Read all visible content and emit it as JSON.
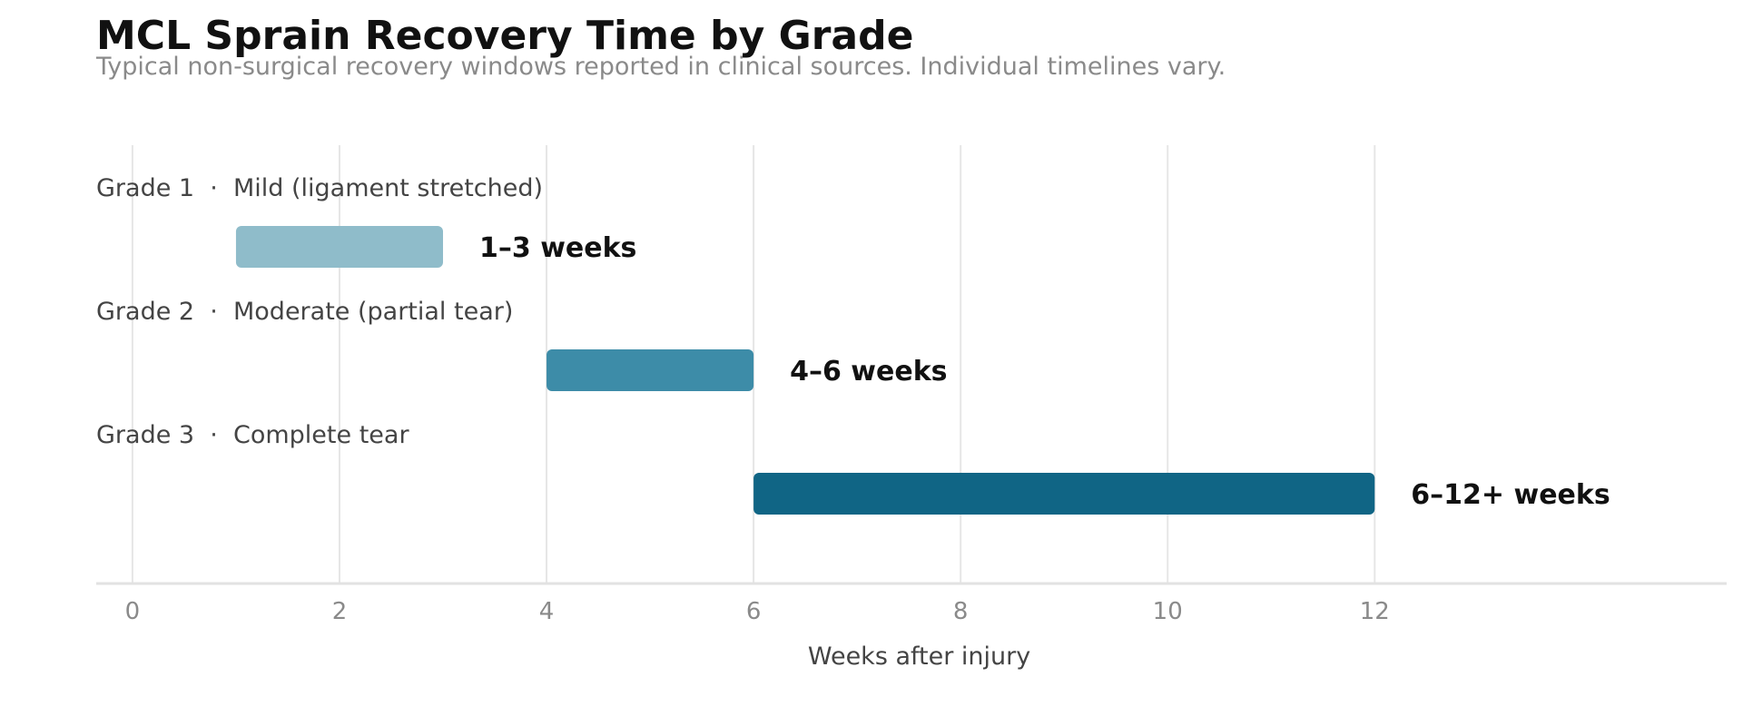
{
  "chart_data": {
    "type": "bar",
    "orientation": "horizontal-range",
    "title": "MCL Sprain Recovery Time by Grade",
    "subtitle": "Typical non-surgical recovery windows reported in clinical sources. Individual timelines vary.",
    "xlabel": "Weeks after injury",
    "ylabel": "",
    "xlim": [
      -0.35,
      15.4
    ],
    "xticks": [
      0,
      2,
      4,
      6,
      8,
      10,
      12
    ],
    "grid": true,
    "legend": "none",
    "categories": [
      "Grade 1  ·  Mild (ligament stretched)",
      "Grade 2  ·  Moderate (partial tear)",
      "Grade 3  ·  Complete tear"
    ],
    "series": [
      {
        "starts": [
          1,
          4,
          6
        ],
        "ends": [
          3,
          6,
          12
        ],
        "labels": [
          "1–3 weeks",
          "4–6 weeks",
          "6–12+ weeks"
        ],
        "colors": [
          "#8fbcca",
          "#3d8ca8",
          "#106585"
        ]
      }
    ]
  }
}
